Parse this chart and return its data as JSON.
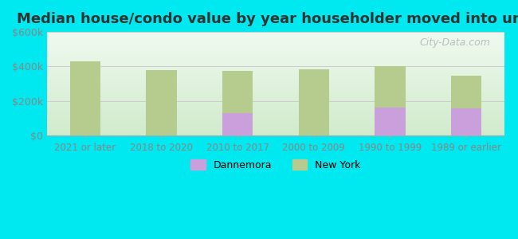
{
  "title": "Median house/condo value by year householder moved into unit",
  "categories": [
    "2021 or later",
    "2018 to 2020",
    "2010 to 2017",
    "2000 to 2009",
    "1990 to 1999",
    "1989 or earlier"
  ],
  "dannemora_values": [
    null,
    null,
    130000,
    null,
    162000,
    158000
  ],
  "newyork_values": [
    432000,
    380000,
    375000,
    385000,
    400000,
    348000
  ],
  "dannemora_color": "#c9a0dc",
  "newyork_color": "#b5cc8e",
  "background_outer": "#00e8f0",
  "yticks": [
    0,
    200000,
    400000,
    600000
  ],
  "ytick_labels": [
    "$0",
    "$200k",
    "$400k",
    "$600k"
  ],
  "ylim": [
    0,
    600000
  ],
  "bar_width": 0.4,
  "legend_labels": [
    "Dannemora",
    "New York"
  ],
  "watermark": "City-Data.com"
}
